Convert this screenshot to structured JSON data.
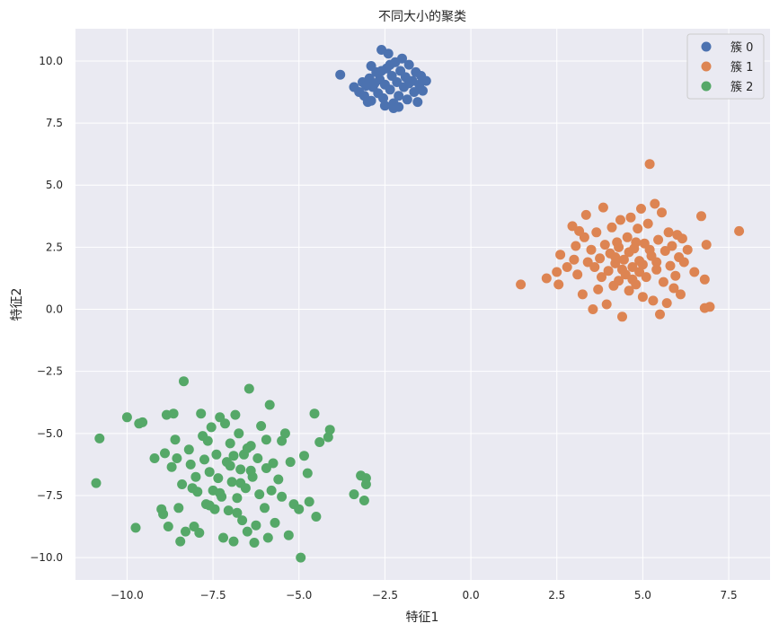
{
  "chart_data": {
    "type": "scatter",
    "title": "不同大小的聚类",
    "xlabel": "特征1",
    "ylabel": "特征2",
    "xlim": [
      -11.5,
      8.7
    ],
    "ylim": [
      -10.9,
      11.3
    ],
    "xticks": [
      -10.0,
      -7.5,
      -5.0,
      -2.5,
      0.0,
      2.5,
      5.0,
      7.5
    ],
    "yticks": [
      -10.0,
      -7.5,
      -5.0,
      -2.5,
      0.0,
      2.5,
      5.0,
      7.5,
      10.0
    ],
    "grid": true,
    "legend_position": "top-right",
    "series": [
      {
        "name": "簇 0",
        "color": "#4c72b0",
        "points": [
          [
            -3.8,
            9.45
          ],
          [
            -3.4,
            8.95
          ],
          [
            -3.25,
            8.75
          ],
          [
            -3.15,
            9.15
          ],
          [
            -3.1,
            8.6
          ],
          [
            -3.0,
            8.35
          ],
          [
            -2.95,
            9.3
          ],
          [
            -2.9,
            9.8
          ],
          [
            -2.85,
            8.95
          ],
          [
            -2.75,
            9.55
          ],
          [
            -2.7,
            8.7
          ],
          [
            -2.65,
            9.25
          ],
          [
            -2.6,
            10.45
          ],
          [
            -2.55,
            8.5
          ],
          [
            -2.5,
            9.05
          ],
          [
            -2.45,
            9.7
          ],
          [
            -2.4,
            10.3
          ],
          [
            -2.35,
            8.85
          ],
          [
            -2.3,
            9.4
          ],
          [
            -2.25,
            8.3
          ],
          [
            -2.2,
            9.95
          ],
          [
            -2.15,
            9.15
          ],
          [
            -2.1,
            8.6
          ],
          [
            -2.05,
            9.6
          ],
          [
            -2.0,
            10.1
          ],
          [
            -1.95,
            8.95
          ],
          [
            -1.9,
            9.35
          ],
          [
            -1.85,
            8.45
          ],
          [
            -1.8,
            9.85
          ],
          [
            -1.7,
            9.2
          ],
          [
            -1.65,
            8.75
          ],
          [
            -1.6,
            9.55
          ],
          [
            -1.55,
            8.35
          ],
          [
            -1.5,
            9.05
          ],
          [
            -1.45,
            9.4
          ],
          [
            -1.4,
            8.8
          ],
          [
            -1.3,
            9.2
          ],
          [
            -2.9,
            8.4
          ],
          [
            -2.25,
            8.1
          ],
          [
            -2.1,
            8.15
          ],
          [
            -2.6,
            9.6
          ],
          [
            -2.8,
            9.1
          ],
          [
            -2.35,
            9.85
          ],
          [
            -1.8,
            9.1
          ],
          [
            -2.5,
            8.2
          ],
          [
            -3.05,
            9.0
          ]
        ]
      },
      {
        "name": "簇 1",
        "color": "#dd8452",
        "points": [
          [
            1.45,
            1.0
          ],
          [
            2.2,
            1.25
          ],
          [
            2.5,
            1.5
          ],
          [
            2.55,
            1.0
          ],
          [
            2.6,
            2.2
          ],
          [
            2.8,
            1.7
          ],
          [
            2.95,
            3.35
          ],
          [
            3.0,
            2.0
          ],
          [
            3.05,
            2.55
          ],
          [
            3.1,
            1.4
          ],
          [
            3.15,
            3.15
          ],
          [
            3.25,
            0.6
          ],
          [
            3.3,
            2.9
          ],
          [
            3.35,
            3.8
          ],
          [
            3.4,
            1.9
          ],
          [
            3.5,
            2.4
          ],
          [
            3.55,
            0.0
          ],
          [
            3.6,
            1.7
          ],
          [
            3.65,
            3.1
          ],
          [
            3.7,
            0.8
          ],
          [
            3.75,
            2.05
          ],
          [
            3.8,
            1.3
          ],
          [
            3.85,
            4.1
          ],
          [
            3.9,
            2.6
          ],
          [
            3.95,
            0.2
          ],
          [
            4.0,
            1.55
          ],
          [
            4.05,
            2.25
          ],
          [
            4.1,
            3.3
          ],
          [
            4.15,
            0.95
          ],
          [
            4.2,
            1.85
          ],
          [
            4.25,
            2.7
          ],
          [
            4.3,
            1.15
          ],
          [
            4.35,
            3.6
          ],
          [
            4.4,
            -0.3
          ],
          [
            4.45,
            2.0
          ],
          [
            4.5,
            1.4
          ],
          [
            4.55,
            2.9
          ],
          [
            4.6,
            0.75
          ],
          [
            4.65,
            3.7
          ],
          [
            4.7,
            1.7
          ],
          [
            4.75,
            2.45
          ],
          [
            4.8,
            1.0
          ],
          [
            4.85,
            3.25
          ],
          [
            4.9,
            1.95
          ],
          [
            4.95,
            4.05
          ],
          [
            5.0,
            0.5
          ],
          [
            5.05,
            2.65
          ],
          [
            5.1,
            1.3
          ],
          [
            5.15,
            3.45
          ],
          [
            5.2,
            5.85
          ],
          [
            5.25,
            2.15
          ],
          [
            5.3,
            0.35
          ],
          [
            5.35,
            4.25
          ],
          [
            5.4,
            1.6
          ],
          [
            5.45,
            2.8
          ],
          [
            5.5,
            -0.2
          ],
          [
            5.55,
            3.9
          ],
          [
            5.6,
            1.1
          ],
          [
            5.65,
            2.35
          ],
          [
            5.7,
            0.25
          ],
          [
            5.75,
            3.1
          ],
          [
            5.8,
            1.75
          ],
          [
            5.85,
            2.55
          ],
          [
            5.9,
            0.85
          ],
          [
            5.95,
            1.35
          ],
          [
            6.0,
            3.0
          ],
          [
            6.05,
            2.1
          ],
          [
            6.1,
            0.6
          ],
          [
            6.15,
            2.85
          ],
          [
            6.2,
            1.9
          ],
          [
            6.3,
            2.4
          ],
          [
            6.5,
            1.5
          ],
          [
            6.7,
            3.75
          ],
          [
            6.8,
            1.2
          ],
          [
            6.8,
            0.05
          ],
          [
            6.85,
            2.6
          ],
          [
            6.95,
            0.1
          ],
          [
            7.8,
            3.15
          ],
          [
            4.2,
            2.1
          ],
          [
            4.6,
            2.3
          ],
          [
            5.0,
            1.8
          ],
          [
            4.4,
            1.6
          ],
          [
            4.8,
            2.7
          ],
          [
            5.2,
            2.4
          ],
          [
            4.7,
            1.2
          ],
          [
            5.4,
            1.9
          ],
          [
            4.3,
            2.5
          ],
          [
            4.9,
            1.5
          ]
        ]
      },
      {
        "name": "簇 2",
        "color": "#55a868",
        "points": [
          [
            -10.9,
            -7.0
          ],
          [
            -10.8,
            -5.2
          ],
          [
            -10.0,
            -4.35
          ],
          [
            -9.75,
            -8.8
          ],
          [
            -9.65,
            -4.6
          ],
          [
            -9.55,
            -4.55
          ],
          [
            -9.2,
            -6.0
          ],
          [
            -9.0,
            -8.05
          ],
          [
            -8.95,
            -8.25
          ],
          [
            -8.9,
            -5.8
          ],
          [
            -8.85,
            -4.25
          ],
          [
            -8.8,
            -8.75
          ],
          [
            -8.7,
            -6.35
          ],
          [
            -8.65,
            -4.2
          ],
          [
            -8.6,
            -5.25
          ],
          [
            -8.55,
            -6.0
          ],
          [
            -8.5,
            -8.0
          ],
          [
            -8.45,
            -9.35
          ],
          [
            -8.4,
            -7.05
          ],
          [
            -8.35,
            -2.9
          ],
          [
            -8.3,
            -8.95
          ],
          [
            -8.2,
            -5.65
          ],
          [
            -8.15,
            -6.25
          ],
          [
            -8.05,
            -8.75
          ],
          [
            -8.0,
            -6.75
          ],
          [
            -7.95,
            -7.35
          ],
          [
            -7.9,
            -9.0
          ],
          [
            -7.85,
            -4.2
          ],
          [
            -7.8,
            -5.1
          ],
          [
            -7.75,
            -6.05
          ],
          [
            -7.7,
            -7.85
          ],
          [
            -7.65,
            -5.3
          ],
          [
            -7.6,
            -6.55
          ],
          [
            -7.55,
            -4.75
          ],
          [
            -7.5,
            -7.3
          ],
          [
            -7.45,
            -8.05
          ],
          [
            -7.4,
            -5.85
          ],
          [
            -7.35,
            -6.8
          ],
          [
            -7.3,
            -4.35
          ],
          [
            -7.25,
            -7.55
          ],
          [
            -7.2,
            -9.2
          ],
          [
            -7.15,
            -4.6
          ],
          [
            -7.1,
            -6.15
          ],
          [
            -7.05,
            -8.1
          ],
          [
            -7.0,
            -5.4
          ],
          [
            -6.95,
            -6.95
          ],
          [
            -6.9,
            -9.35
          ],
          [
            -6.85,
            -4.25
          ],
          [
            -6.8,
            -7.6
          ],
          [
            -6.75,
            -5.0
          ],
          [
            -6.7,
            -6.45
          ],
          [
            -6.65,
            -8.5
          ],
          [
            -6.6,
            -5.85
          ],
          [
            -6.55,
            -7.2
          ],
          [
            -6.5,
            -8.95
          ],
          [
            -6.45,
            -3.2
          ],
          [
            -6.4,
            -5.5
          ],
          [
            -6.35,
            -6.75
          ],
          [
            -6.3,
            -9.4
          ],
          [
            -6.25,
            -8.7
          ],
          [
            -6.2,
            -6.0
          ],
          [
            -6.15,
            -7.45
          ],
          [
            -6.1,
            -4.7
          ],
          [
            -6.0,
            -8.0
          ],
          [
            -5.95,
            -5.25
          ],
          [
            -5.9,
            -9.2
          ],
          [
            -5.85,
            -3.85
          ],
          [
            -5.8,
            -7.3
          ],
          [
            -5.75,
            -6.2
          ],
          [
            -5.7,
            -8.6
          ],
          [
            -5.6,
            -6.85
          ],
          [
            -5.5,
            -7.55
          ],
          [
            -5.4,
            -5.0
          ],
          [
            -5.3,
            -9.1
          ],
          [
            -5.25,
            -6.15
          ],
          [
            -5.15,
            -7.85
          ],
          [
            -5.0,
            -8.05
          ],
          [
            -4.95,
            -10.0
          ],
          [
            -4.85,
            -5.9
          ],
          [
            -4.75,
            -6.6
          ],
          [
            -4.7,
            -7.75
          ],
          [
            -4.55,
            -4.2
          ],
          [
            -4.5,
            -8.35
          ],
          [
            -4.4,
            -5.35
          ],
          [
            -4.15,
            -5.15
          ],
          [
            -4.1,
            -4.85
          ],
          [
            -3.4,
            -7.45
          ],
          [
            -3.2,
            -6.7
          ],
          [
            -3.1,
            -7.7
          ],
          [
            -3.05,
            -7.05
          ],
          [
            -3.05,
            -6.8
          ],
          [
            -6.7,
            -7.0
          ],
          [
            -7.0,
            -6.3
          ],
          [
            -6.4,
            -6.5
          ],
          [
            -7.6,
            -7.9
          ],
          [
            -6.9,
            -5.9
          ],
          [
            -5.95,
            -6.4
          ],
          [
            -7.3,
            -7.4
          ],
          [
            -6.5,
            -5.6
          ],
          [
            -8.1,
            -7.2
          ],
          [
            -5.5,
            -5.3
          ],
          [
            -6.8,
            -8.2
          ]
        ]
      }
    ]
  }
}
